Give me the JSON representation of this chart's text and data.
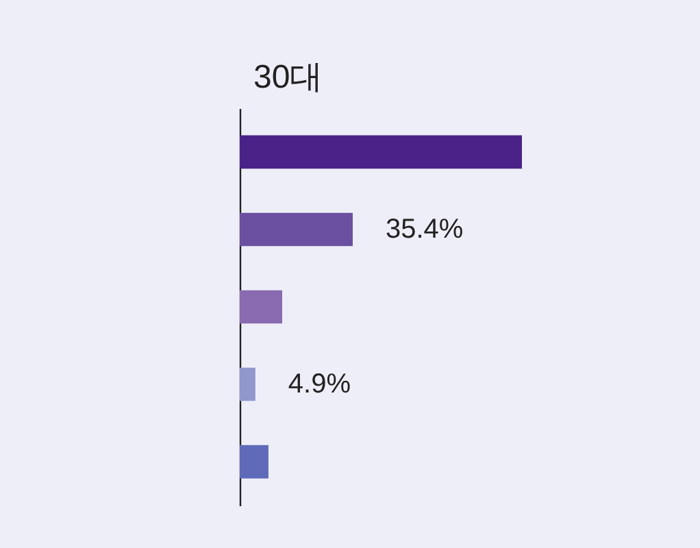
{
  "chart_data": {
    "type": "bar",
    "orientation": "horizontal",
    "title": "30대",
    "categories": [
      null,
      null,
      null,
      null,
      null
    ],
    "values": [
      88.4,
      35.4,
      13.3,
      4.9,
      9.0
    ],
    "colors": [
      "#4b2288",
      "#6b4fa0",
      "#8a6ab0",
      "#9098cc",
      "#5f6bb8"
    ],
    "value_labels": [
      null,
      "35.4%",
      null,
      "4.9%",
      null
    ]
  }
}
